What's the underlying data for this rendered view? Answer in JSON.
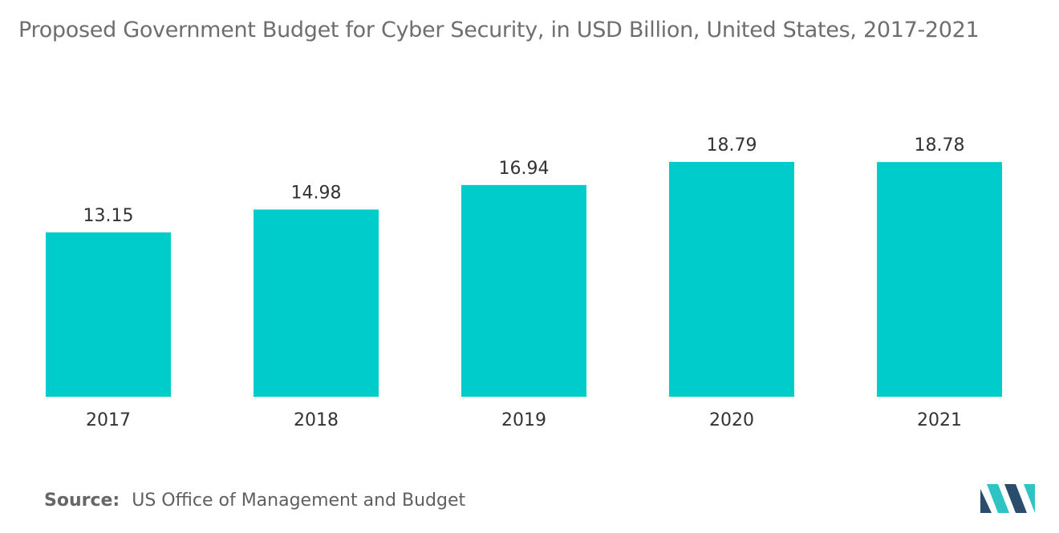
{
  "colors": {
    "bar": "#00cccc",
    "text": "#333333",
    "title": "#6e6e6e",
    "logo_dark": "#2a4d6e",
    "logo_light": "#2ec4c6"
  },
  "title": "Proposed Government Budget for Cyber Security, in USD Billion, United States, 2017-2021",
  "source": {
    "label": "Source:",
    "text": "US Office of Management and Budget"
  },
  "logo": {
    "icon": "mordor-logo-icon"
  },
  "chart_data": {
    "type": "bar",
    "title": "Proposed Government Budget for Cyber Security, in USD Billion, United States, 2017-2021",
    "categories": [
      "2017",
      "2018",
      "2019",
      "2020",
      "2021"
    ],
    "values": [
      13.15,
      14.98,
      16.94,
      18.79,
      18.78
    ],
    "value_labels": [
      "13.15",
      "14.98",
      "16.94",
      "18.79",
      "18.78"
    ],
    "xlabel": "",
    "ylabel": "",
    "ylim": [
      0,
      18.79
    ],
    "grid": false,
    "legend": "none"
  }
}
